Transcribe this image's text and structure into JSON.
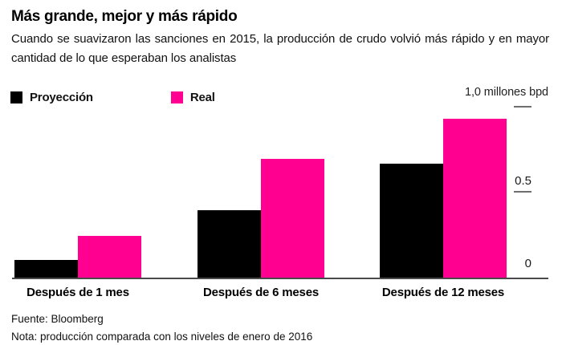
{
  "header": {
    "title": "Más grande, mejor y más rápido",
    "subtitle": "Cuando se suavizaron las sanciones en 2015, la producción de crudo volvió más rápido y en mayor cantidad de lo que esperaban los analistas"
  },
  "legend": [
    {
      "label": "Proyección",
      "color": "#000000"
    },
    {
      "label": "Real",
      "color": "#FF0090"
    }
  ],
  "chart_data": {
    "type": "bar",
    "categories": [
      "Después de 1 mes",
      "Después de 6 meses",
      "Después de 12 meses"
    ],
    "series": [
      {
        "name": "Proyección",
        "color": "#000000",
        "values": [
          0.1,
          0.39,
          0.66
        ]
      },
      {
        "name": "Real",
        "color": "#FF0090",
        "values": [
          0.24,
          0.69,
          0.92
        ]
      }
    ],
    "ylim": [
      0,
      1.0
    ],
    "yticks": [
      {
        "value": 1.0,
        "label": "1,0 millones bpd"
      },
      {
        "value": 0.5,
        "label": "0.5"
      },
      {
        "value": 0.0,
        "label": "0"
      }
    ],
    "ylabel": "millones bpd",
    "xlabel": "",
    "grid": false,
    "legend_position": "top-left"
  },
  "footer": {
    "source": "Fuente: Bloomberg",
    "note": "Nota: producción comparada con los niveles de enero de 2016"
  }
}
